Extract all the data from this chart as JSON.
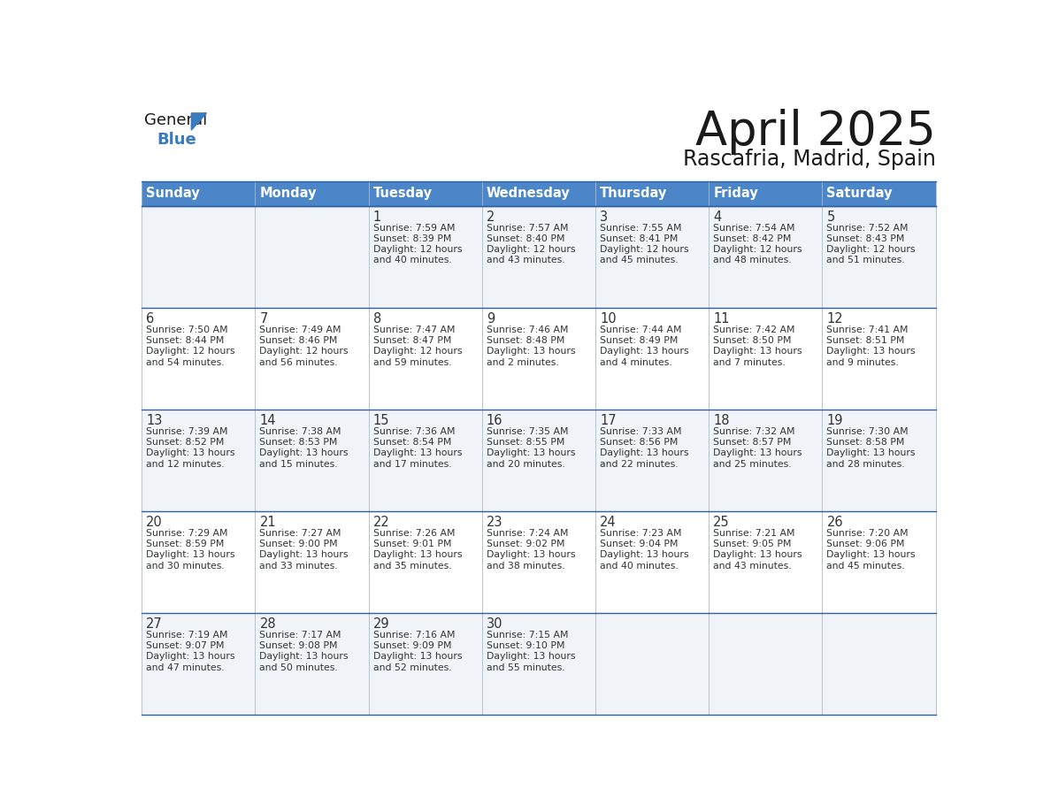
{
  "title": "April 2025",
  "subtitle": "Rascafria, Madrid, Spain",
  "header_bg": "#4a86c8",
  "header_text_color": "#ffffff",
  "cell_bg_odd": "#f0f4f8",
  "cell_bg_even": "#ffffff",
  "border_color": "#2e5f9e",
  "title_color": "#1a1a1a",
  "subtitle_color": "#1a1a1a",
  "text_color": "#333333",
  "days_of_week": [
    "Sunday",
    "Monday",
    "Tuesday",
    "Wednesday",
    "Thursday",
    "Friday",
    "Saturday"
  ],
  "weeks": [
    [
      {
        "day": "",
        "sunrise": "",
        "sunset": "",
        "daylight": ""
      },
      {
        "day": "",
        "sunrise": "",
        "sunset": "",
        "daylight": ""
      },
      {
        "day": "1",
        "sunrise": "7:59 AM",
        "sunset": "8:39 PM",
        "daylight": "12 hours and 40 minutes."
      },
      {
        "day": "2",
        "sunrise": "7:57 AM",
        "sunset": "8:40 PM",
        "daylight": "12 hours and 43 minutes."
      },
      {
        "day": "3",
        "sunrise": "7:55 AM",
        "sunset": "8:41 PM",
        "daylight": "12 hours and 45 minutes."
      },
      {
        "day": "4",
        "sunrise": "7:54 AM",
        "sunset": "8:42 PM",
        "daylight": "12 hours and 48 minutes."
      },
      {
        "day": "5",
        "sunrise": "7:52 AM",
        "sunset": "8:43 PM",
        "daylight": "12 hours and 51 minutes."
      }
    ],
    [
      {
        "day": "6",
        "sunrise": "7:50 AM",
        "sunset": "8:44 PM",
        "daylight": "12 hours and 54 minutes."
      },
      {
        "day": "7",
        "sunrise": "7:49 AM",
        "sunset": "8:46 PM",
        "daylight": "12 hours and 56 minutes."
      },
      {
        "day": "8",
        "sunrise": "7:47 AM",
        "sunset": "8:47 PM",
        "daylight": "12 hours and 59 minutes."
      },
      {
        "day": "9",
        "sunrise": "7:46 AM",
        "sunset": "8:48 PM",
        "daylight": "13 hours and 2 minutes."
      },
      {
        "day": "10",
        "sunrise": "7:44 AM",
        "sunset": "8:49 PM",
        "daylight": "13 hours and 4 minutes."
      },
      {
        "day": "11",
        "sunrise": "7:42 AM",
        "sunset": "8:50 PM",
        "daylight": "13 hours and 7 minutes."
      },
      {
        "day": "12",
        "sunrise": "7:41 AM",
        "sunset": "8:51 PM",
        "daylight": "13 hours and 9 minutes."
      }
    ],
    [
      {
        "day": "13",
        "sunrise": "7:39 AM",
        "sunset": "8:52 PM",
        "daylight": "13 hours and 12 minutes."
      },
      {
        "day": "14",
        "sunrise": "7:38 AM",
        "sunset": "8:53 PM",
        "daylight": "13 hours and 15 minutes."
      },
      {
        "day": "15",
        "sunrise": "7:36 AM",
        "sunset": "8:54 PM",
        "daylight": "13 hours and 17 minutes."
      },
      {
        "day": "16",
        "sunrise": "7:35 AM",
        "sunset": "8:55 PM",
        "daylight": "13 hours and 20 minutes."
      },
      {
        "day": "17",
        "sunrise": "7:33 AM",
        "sunset": "8:56 PM",
        "daylight": "13 hours and 22 minutes."
      },
      {
        "day": "18",
        "sunrise": "7:32 AM",
        "sunset": "8:57 PM",
        "daylight": "13 hours and 25 minutes."
      },
      {
        "day": "19",
        "sunrise": "7:30 AM",
        "sunset": "8:58 PM",
        "daylight": "13 hours and 28 minutes."
      }
    ],
    [
      {
        "day": "20",
        "sunrise": "7:29 AM",
        "sunset": "8:59 PM",
        "daylight": "13 hours and 30 minutes."
      },
      {
        "day": "21",
        "sunrise": "7:27 AM",
        "sunset": "9:00 PM",
        "daylight": "13 hours and 33 minutes."
      },
      {
        "day": "22",
        "sunrise": "7:26 AM",
        "sunset": "9:01 PM",
        "daylight": "13 hours and 35 minutes."
      },
      {
        "day": "23",
        "sunrise": "7:24 AM",
        "sunset": "9:02 PM",
        "daylight": "13 hours and 38 minutes."
      },
      {
        "day": "24",
        "sunrise": "7:23 AM",
        "sunset": "9:04 PM",
        "daylight": "13 hours and 40 minutes."
      },
      {
        "day": "25",
        "sunrise": "7:21 AM",
        "sunset": "9:05 PM",
        "daylight": "13 hours and 43 minutes."
      },
      {
        "day": "26",
        "sunrise": "7:20 AM",
        "sunset": "9:06 PM",
        "daylight": "13 hours and 45 minutes."
      }
    ],
    [
      {
        "day": "27",
        "sunrise": "7:19 AM",
        "sunset": "9:07 PM",
        "daylight": "13 hours and 47 minutes."
      },
      {
        "day": "28",
        "sunrise": "7:17 AM",
        "sunset": "9:08 PM",
        "daylight": "13 hours and 50 minutes."
      },
      {
        "day": "29",
        "sunrise": "7:16 AM",
        "sunset": "9:09 PM",
        "daylight": "13 hours and 52 minutes."
      },
      {
        "day": "30",
        "sunrise": "7:15 AM",
        "sunset": "9:10 PM",
        "daylight": "13 hours and 55 minutes."
      },
      {
        "day": "",
        "sunrise": "",
        "sunset": "",
        "daylight": ""
      },
      {
        "day": "",
        "sunrise": "",
        "sunset": "",
        "daylight": ""
      },
      {
        "day": "",
        "sunrise": "",
        "sunset": "",
        "daylight": ""
      }
    ]
  ],
  "logo_general_color": "#1a1a1a",
  "logo_blue_color": "#3a7abf",
  "logo_triangle_color": "#3a7abf"
}
